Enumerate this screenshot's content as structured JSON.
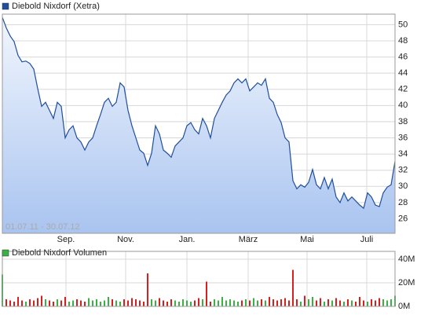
{
  "chart_data": [
    {
      "type": "area",
      "series": [
        {
          "name": "Diebold Nixdorf (Xetra)",
          "color": "#1f4e9c",
          "values": [
            50.9,
            49.6,
            48.6,
            47.9,
            46.2,
            45.4,
            45.5,
            45.2,
            44.5,
            42.1,
            39.9,
            40.4,
            39.4,
            38.4,
            40.4,
            39.9,
            36.0,
            37.0,
            37.5,
            36.0,
            35.5,
            34.5,
            35.5,
            36.0,
            37.5,
            38.9,
            40.4,
            40.9,
            39.9,
            40.4,
            42.8,
            42.3,
            39.4,
            37.5,
            36.0,
            34.5,
            34.1,
            32.6,
            34.1,
            37.5,
            36.5,
            34.5,
            34.1,
            33.6,
            35.0,
            35.5,
            36.0,
            37.5,
            37.9,
            37.0,
            36.5,
            38.4,
            37.5,
            36.0,
            38.4,
            39.4,
            40.4,
            41.3,
            41.8,
            42.8,
            43.3,
            42.8,
            43.3,
            41.8,
            42.3,
            42.8,
            42.5,
            43.3,
            40.9,
            40.4,
            38.9,
            37.9,
            36.0,
            35.5,
            30.7,
            29.7,
            30.2,
            29.9,
            30.5,
            32.1,
            30.2,
            29.7,
            31.1,
            29.7,
            30.9,
            28.7,
            28.0,
            29.2,
            28.2,
            28.7,
            28.2,
            27.7,
            27.3,
            29.2,
            28.7,
            27.7,
            27.5,
            29.2,
            29.9,
            30.2,
            33.1
          ]
        }
      ],
      "date_range": "01.07.11 - 30.07.12",
      "xlim": [
        0,
        100
      ],
      "xticks": [
        {
          "value": 16.2,
          "label": "Sep."
        },
        {
          "value": 31.4,
          "label": "Nov."
        },
        {
          "value": 47,
          "label": "Jan."
        },
        {
          "value": 62.6,
          "label": "März"
        },
        {
          "value": 77.6,
          "label": "Mai"
        },
        {
          "value": 92.8,
          "label": "Juli"
        }
      ],
      "ylim": [
        24.2,
        51.3
      ],
      "yticks": [
        26,
        28,
        30,
        32,
        34,
        36,
        38,
        40,
        42,
        44,
        46,
        48,
        50
      ],
      "grid": true
    },
    {
      "type": "bar",
      "series": [
        {
          "name": "Diebold Nixdorf Volumen",
          "color": "#3cb043",
          "values": [
            27,
            6,
            5,
            4,
            8,
            5,
            4,
            6,
            5,
            7,
            9,
            6,
            5,
            4,
            6,
            5,
            8,
            4,
            5,
            6,
            5,
            4,
            7,
            5,
            6,
            4,
            5,
            8,
            6,
            5,
            4,
            6,
            5,
            7,
            6,
            5,
            4,
            28,
            6,
            5,
            7,
            5,
            4,
            6,
            5,
            4,
            6,
            5,
            4,
            5,
            7,
            6,
            21,
            4,
            6,
            5,
            8,
            5,
            6,
            5,
            4,
            5,
            6,
            5,
            7,
            5,
            6,
            5,
            8,
            6,
            5,
            6,
            7,
            5,
            31,
            6,
            4,
            9,
            6,
            8,
            5,
            7,
            4,
            6,
            5,
            7,
            5,
            4,
            6,
            5,
            4,
            8,
            5,
            4,
            6,
            5,
            7,
            6,
            5,
            6,
            9
          ]
        }
      ],
      "down_color": "#d62020",
      "xlim": [
        0,
        100
      ],
      "xticks": [
        {
          "value": 16.2,
          "label": "Sep."
        },
        {
          "value": 31.4,
          "label": "Nov."
        },
        {
          "value": 47,
          "label": "Jan."
        },
        {
          "value": 62.6,
          "label": "März"
        },
        {
          "value": 77.6,
          "label": "Mai"
        },
        {
          "value": 92.8,
          "label": "Juli"
        }
      ],
      "ylim": [
        0,
        46.7
      ],
      "yticks": [
        {
          "value": 0,
          "label": "0M"
        },
        {
          "value": 20,
          "label": "20M"
        },
        {
          "value": 40,
          "label": "40M"
        }
      ],
      "grid": true
    }
  ]
}
